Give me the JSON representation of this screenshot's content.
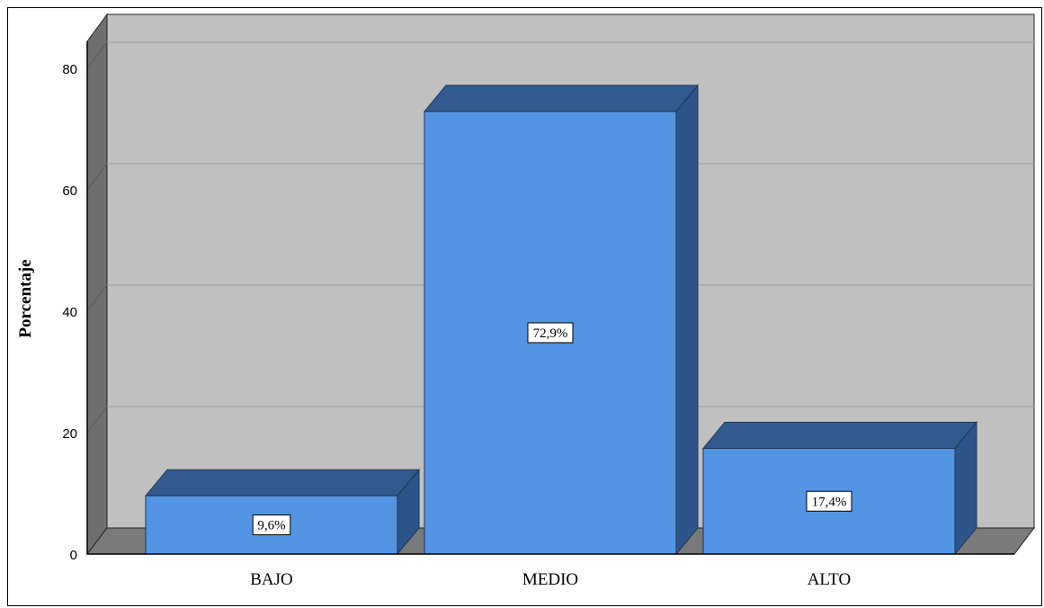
{
  "chart_data": {
    "type": "bar",
    "style": "3d",
    "categories": [
      "BAJO",
      "MEDIO",
      "ALTO"
    ],
    "values": [
      9.6,
      72.9,
      17.4
    ],
    "data_labels": [
      "9,6%",
      "72,9%",
      "17,4%"
    ],
    "title": "",
    "xlabel": "",
    "ylabel": "Porcentaje",
    "ylim": [
      0,
      84
    ],
    "yticks": [
      0,
      20,
      40,
      60,
      80
    ],
    "grid": true,
    "legend": "none"
  },
  "colors": {
    "bar_front": "#5494e4",
    "bar_top": "#325a8f",
    "bar_side": "#2e558a",
    "back_wall": "#c0c0c0",
    "side_wall": "#6f6f6f",
    "floor": "#7a7a7a",
    "gridline": "#a6a6a6"
  }
}
